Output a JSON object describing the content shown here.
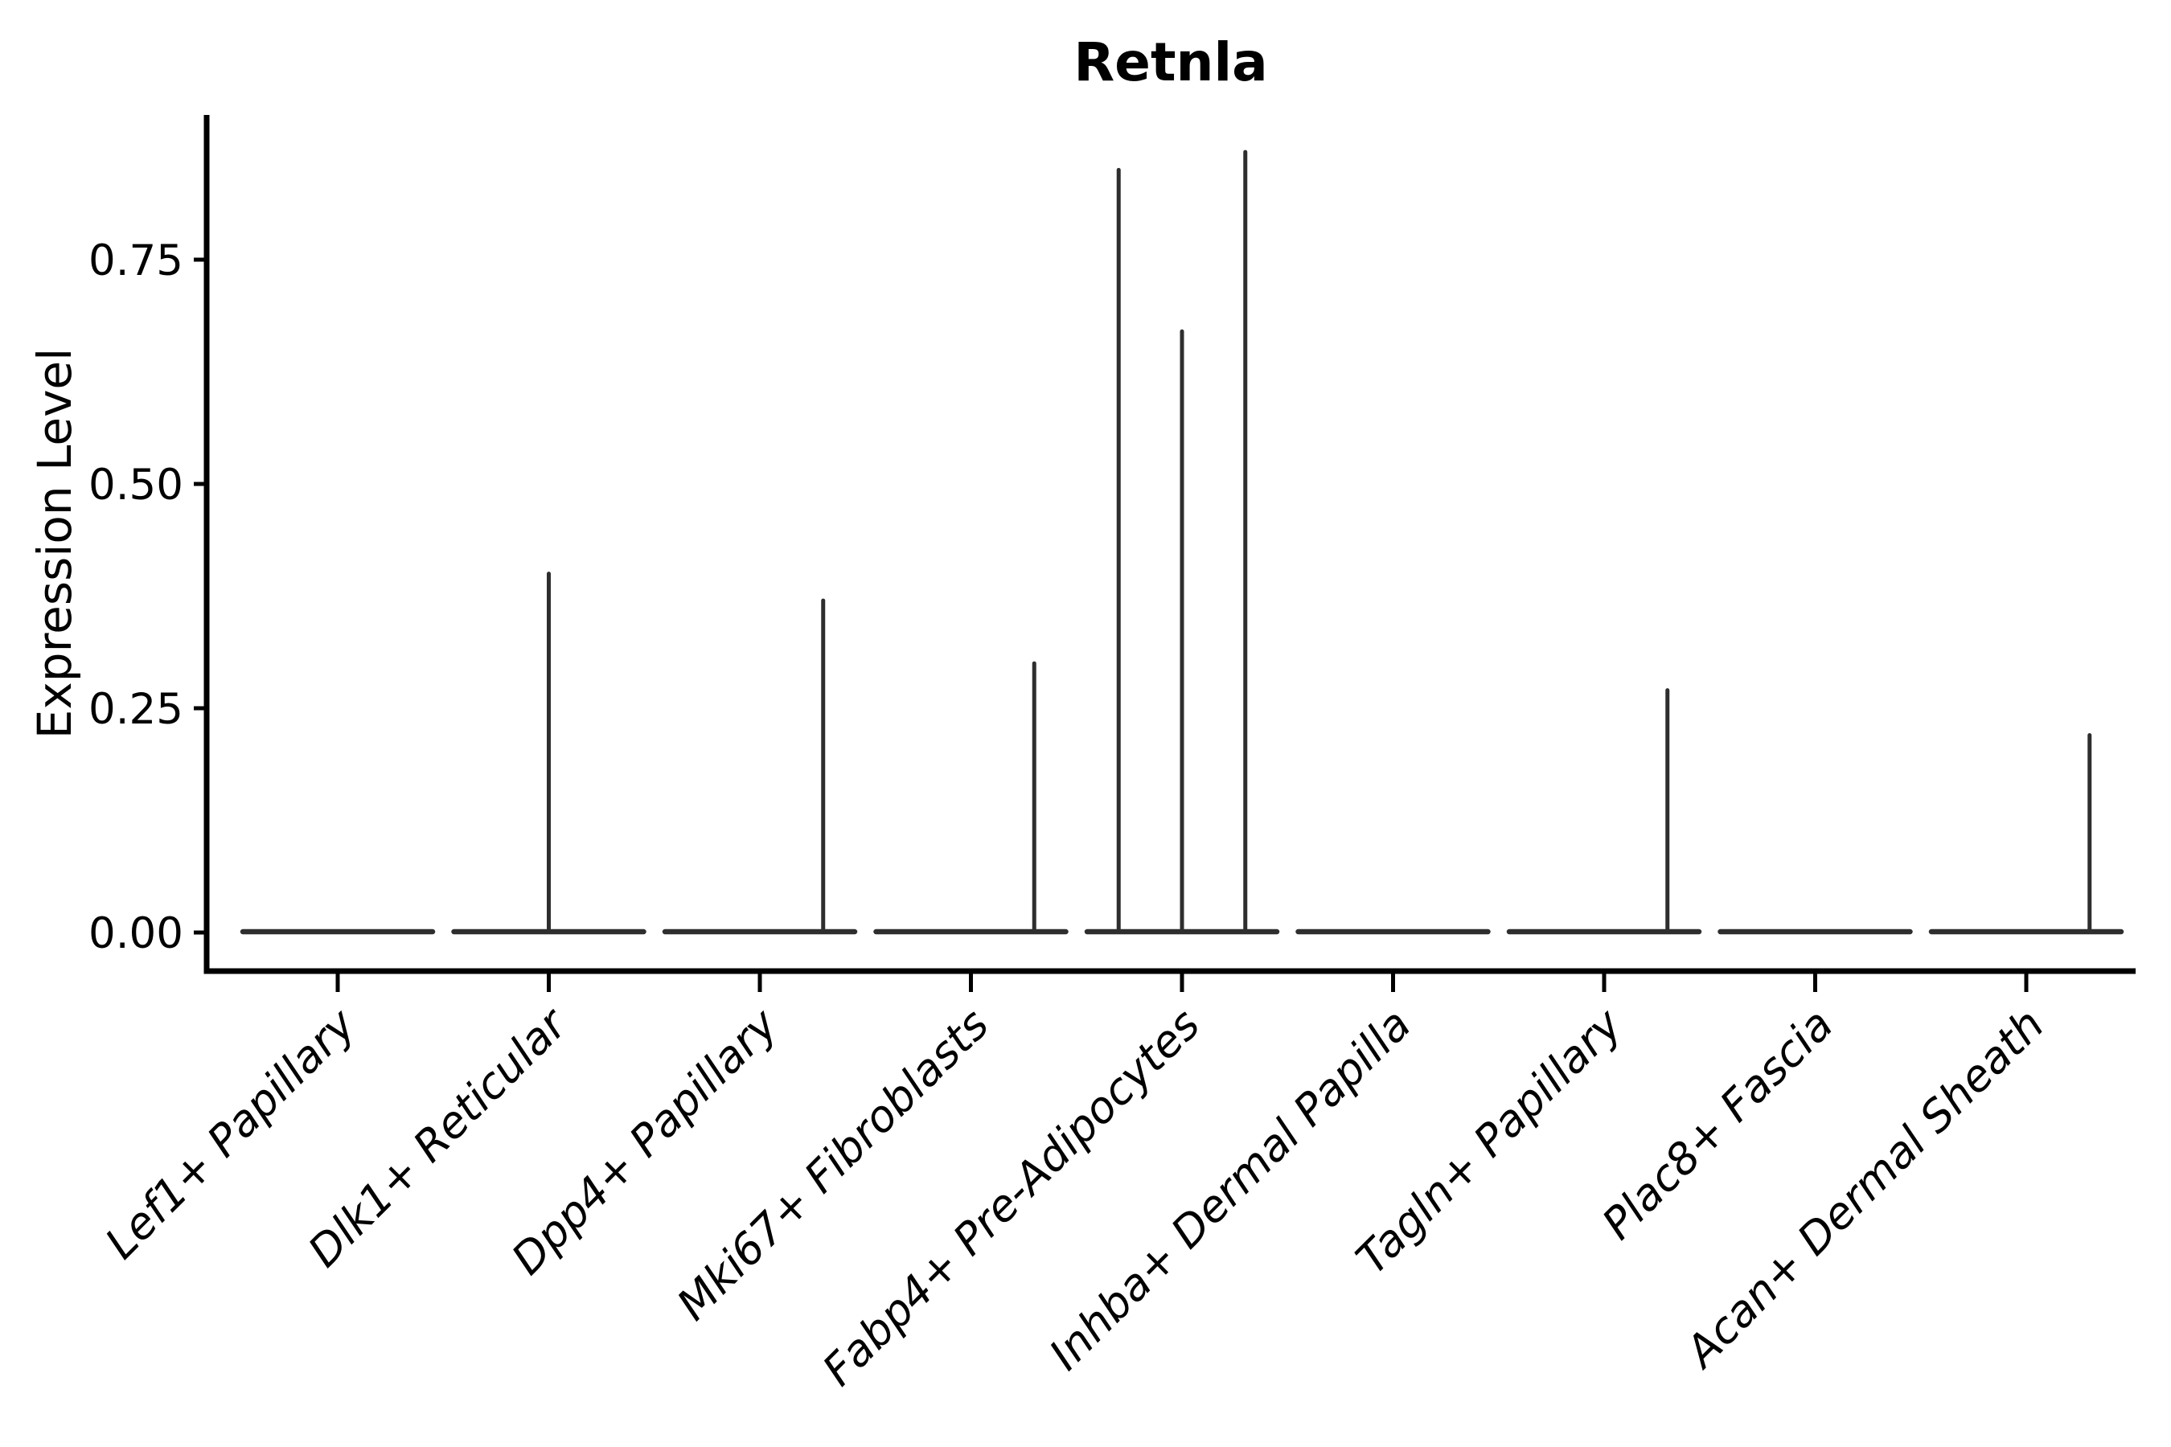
{
  "chart": {
    "title": "Retnla",
    "ylabel": "Expression Level"
  },
  "chart_data": {
    "type": "violin",
    "title": "Retnla",
    "xlabel": "",
    "ylabel": "Expression Level",
    "ylim": [
      0,
      0.91
    ],
    "grid": false,
    "legend": "none",
    "ytick_labels": [
      "0.00",
      "0.25",
      "0.50",
      "0.75"
    ],
    "ytick_values": [
      0,
      0.25,
      0.5,
      0.75
    ],
    "categories": [
      "Lef1+ Papillary",
      "Dlk1+ Reticular",
      "Dpp4+ Papillary",
      "Mki67+ Fibroblasts",
      "Fabp4+ Pre-Adipocytes",
      "Inhba+ Dermal Papilla",
      "Tagln+ Papillary",
      "Plac8+ Fascia",
      "Acan+ Dermal Sheath"
    ],
    "violins": [
      {
        "category": "Lef1+ Papillary",
        "baseline_value": 0,
        "spikes": []
      },
      {
        "category": "Dlk1+ Reticular",
        "baseline_value": 0,
        "spikes": [
          {
            "position": "center",
            "value": 0.4
          }
        ]
      },
      {
        "category": "Dpp4+ Papillary",
        "baseline_value": 0,
        "spikes": [
          {
            "position": "right",
            "value": 0.37
          }
        ]
      },
      {
        "category": "Mki67+ Fibroblasts",
        "baseline_value": 0,
        "spikes": [
          {
            "position": "right",
            "value": 0.3
          }
        ]
      },
      {
        "category": "Fabp4+ Pre-Adipocytes",
        "baseline_value": 0,
        "spikes": [
          {
            "position": "left",
            "value": 0.85
          },
          {
            "position": "center",
            "value": 0.67
          },
          {
            "position": "right",
            "value": 0.87
          }
        ]
      },
      {
        "category": "Inhba+ Dermal Papilla",
        "baseline_value": 0,
        "spikes": []
      },
      {
        "category": "Tagln+ Papillary",
        "baseline_value": 0,
        "spikes": [
          {
            "position": "right",
            "value": 0.27
          }
        ]
      },
      {
        "category": "Plac8+ Fascia",
        "baseline_value": 0,
        "spikes": []
      },
      {
        "category": "Acan+ Dermal Sheath",
        "baseline_value": 0,
        "spikes": [
          {
            "position": "right",
            "value": 0.22
          }
        ]
      }
    ],
    "colors": {
      "violin_stroke": "#2e2e2e",
      "axis": "#000000",
      "text": "#000000",
      "background": "#ffffff"
    }
  }
}
